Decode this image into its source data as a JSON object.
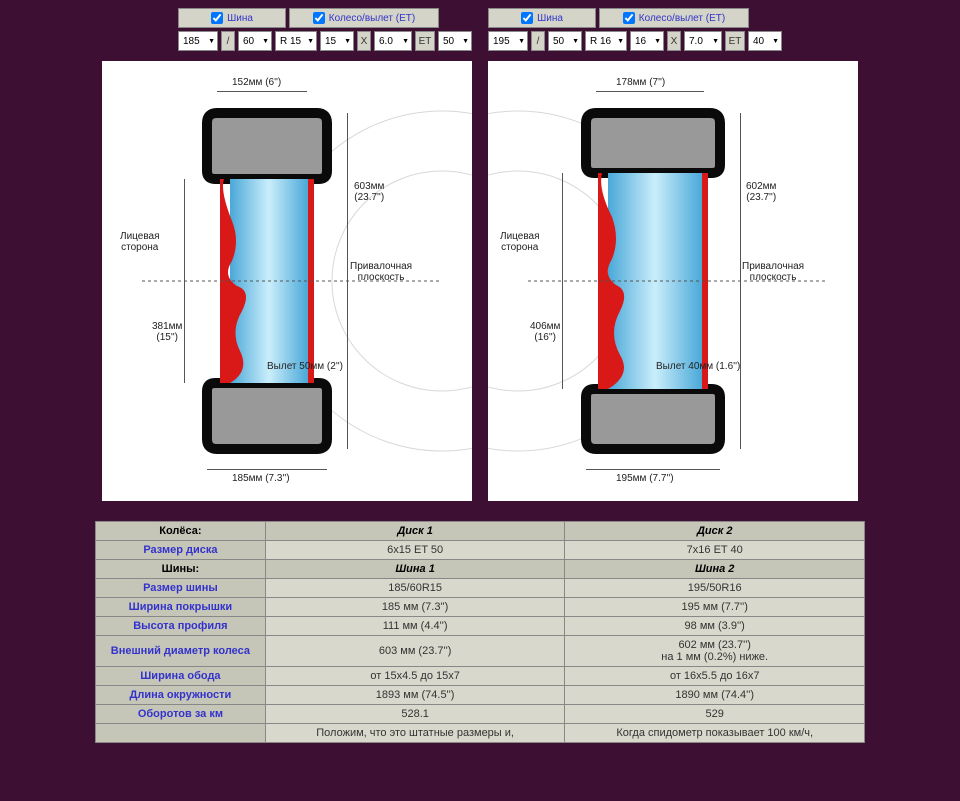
{
  "controls": {
    "left": {
      "tire_chk": "Шина",
      "wheel_chk": "Колесо/вылет (ET)",
      "w": "185",
      "slash": "/",
      "a": "60",
      "r": "R 15",
      "rim_d": "15",
      "x": "X",
      "rim_w": "6.0",
      "et_lbl": "ET",
      "et": "50"
    },
    "right": {
      "tire_chk": "Шина",
      "wheel_chk": "Колесо/вылет (ET)",
      "w": "195",
      "slash": "/",
      "a": "50",
      "r": "R 16",
      "rim_d": "16",
      "x": "X",
      "rim_w": "7.0",
      "et_lbl": "ET",
      "et": "40"
    }
  },
  "diagram": {
    "left": {
      "top_w": "152мм (6'')",
      "diameter": "603мм\n(23.7'')",
      "face": "Лицевая\nсторона",
      "mount": "Привалочная\nплоскость",
      "rim_d": "381мм\n(15'')",
      "offset": "Вылет 50мм (2'')",
      "bottom_w": "185мм (7.3'')"
    },
    "right": {
      "top_w": "178мм (7'')",
      "diameter": "602мм\n(23.7'')",
      "face": "Лицевая\nсторона",
      "mount": "Привалочная\nплоскость",
      "rim_d": "406мм\n(16'')",
      "offset": "Вылет 40мм (1.6'')",
      "bottom_w": "195мм (7.7'')"
    }
  },
  "table": {
    "wheels_hdr": "Колёса:",
    "disk1": "Диск 1",
    "disk2": "Диск 2",
    "rows": [
      {
        "label": "Размер диска",
        "v1": "6x15 ET 50",
        "v2": "7x16 ET 40"
      }
    ],
    "tires_hdr": "Шины:",
    "tire1": "Шина 1",
    "tire2": "Шина 2",
    "trows": [
      {
        "label": "Размер шины",
        "v1": "185/60R15",
        "v2": "195/50R16"
      },
      {
        "label": "Ширина покрышки",
        "v1": "185 мм (7.3'')",
        "v2": "195 мм (7.7'')"
      },
      {
        "label": "Высота профиля",
        "v1": "111 мм (4.4'')",
        "v2": "98 мм (3.9'')"
      },
      {
        "label": "Внешний диаметр колеса",
        "v1": "603 мм (23.7'')",
        "v2": "602 мм (23.7'')\nна 1 мм (0.2%) ниже."
      },
      {
        "label": "Ширина обода",
        "v1": "от 15x4.5 до 15x7",
        "v2": "от 16x5.5 до 16x7"
      },
      {
        "label": "Длина окружности",
        "v1": "1893 мм (74.5'')",
        "v2": "1890 мм (74.4'')"
      },
      {
        "label": "Оборотов за км",
        "v1": "528.1",
        "v2": "529"
      }
    ],
    "footnote": {
      "v1": "Положим, что это штатные размеры и,",
      "v2": "Когда спидометр показывает 100 км/ч,"
    }
  },
  "style": {
    "tire_black": "#0a0a0a",
    "rim_red": "#d91818",
    "rim_blue_light": "#9ad8f0",
    "rim_blue_dark": "#4aa8d8",
    "guide_circle": "#d8d8d8",
    "bg": "#3d0f33"
  }
}
